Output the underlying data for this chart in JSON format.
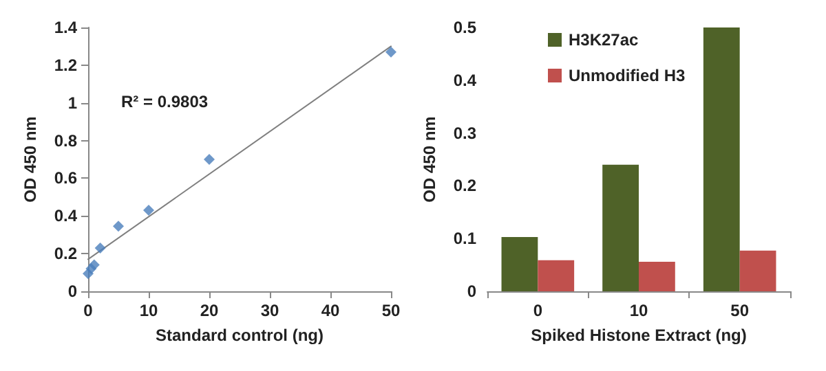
{
  "chart_data": [
    {
      "type": "scatter",
      "xlabel": "Standard control (ng)",
      "ylabel": "OD 450 nm",
      "annotations": [
        "R² = 0.9803"
      ],
      "xlim": [
        0,
        50
      ],
      "ylim": [
        0,
        1.4
      ],
      "xticks": [
        0,
        10,
        20,
        30,
        40,
        50
      ],
      "yticks": [
        0,
        0.2,
        0.4,
        0.6,
        0.8,
        1,
        1.2,
        1.4
      ],
      "marker": "diamond",
      "series": [
        {
          "type": "line",
          "color": "#808080",
          "marker": "none",
          "line_style": "solid",
          "x": [
            0,
            50
          ],
          "values": [
            0.17,
            1.3
          ]
        },
        {
          "type": "scatter",
          "color": "#4a7ebb",
          "x": [
            0,
            0.5,
            1,
            2,
            5,
            10,
            20,
            50
          ],
          "values": [
            0.094,
            0.12,
            0.14,
            0.23,
            0.345,
            0.43,
            0.7,
            1.27
          ]
        }
      ]
    },
    {
      "type": "bar",
      "xlabel": "Spiked Histone Extract (ng)",
      "ylabel": "OD 450 nm",
      "categories": [
        "0",
        "10",
        "50"
      ],
      "ylim": [
        0,
        0.5
      ],
      "yticks": [
        0,
        0.1,
        0.2,
        0.3,
        0.4,
        0.5
      ],
      "legend": "top left",
      "series": [
        {
          "name": "H3K27ac",
          "color": "#4f6228",
          "values": [
            0.103,
            0.24,
            0.5
          ]
        },
        {
          "name": "Unmodified H3",
          "color": "#c0504d",
          "values": [
            0.059,
            0.056,
            0.077
          ]
        }
      ]
    }
  ]
}
